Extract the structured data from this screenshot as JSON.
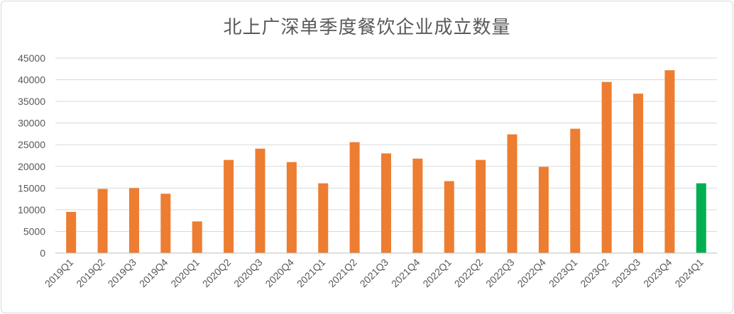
{
  "chart_data": {
    "type": "bar",
    "title": "北上广深单季度餐饮企业成立数量",
    "xlabel": "",
    "ylabel": "",
    "ylim": [
      0,
      45000
    ],
    "yticks": [
      0,
      5000,
      10000,
      15000,
      20000,
      25000,
      30000,
      35000,
      40000,
      45000
    ],
    "grid": true,
    "categories": [
      "2019Q1",
      "2019Q2",
      "2019Q3",
      "2019Q4",
      "2020Q1",
      "2020Q2",
      "2020Q3",
      "2020Q4",
      "2021Q1",
      "2021Q2",
      "2021Q3",
      "2021Q4",
      "2022Q1",
      "2022Q2",
      "2022Q3",
      "2022Q4",
      "2023Q1",
      "2023Q2",
      "2023Q3",
      "2023Q4",
      "2024Q1"
    ],
    "values": [
      9500,
      14800,
      15000,
      13700,
      7300,
      21500,
      24100,
      21000,
      16100,
      25600,
      23000,
      21800,
      16600,
      21500,
      27400,
      19900,
      28700,
      39500,
      36800,
      42200,
      16100
    ],
    "colors": {
      "default": "#ED7D31",
      "highlight": "#00B050",
      "grid": "#d9d9d9",
      "axis": "#bfbfbf"
    },
    "highlight_index": 20
  }
}
